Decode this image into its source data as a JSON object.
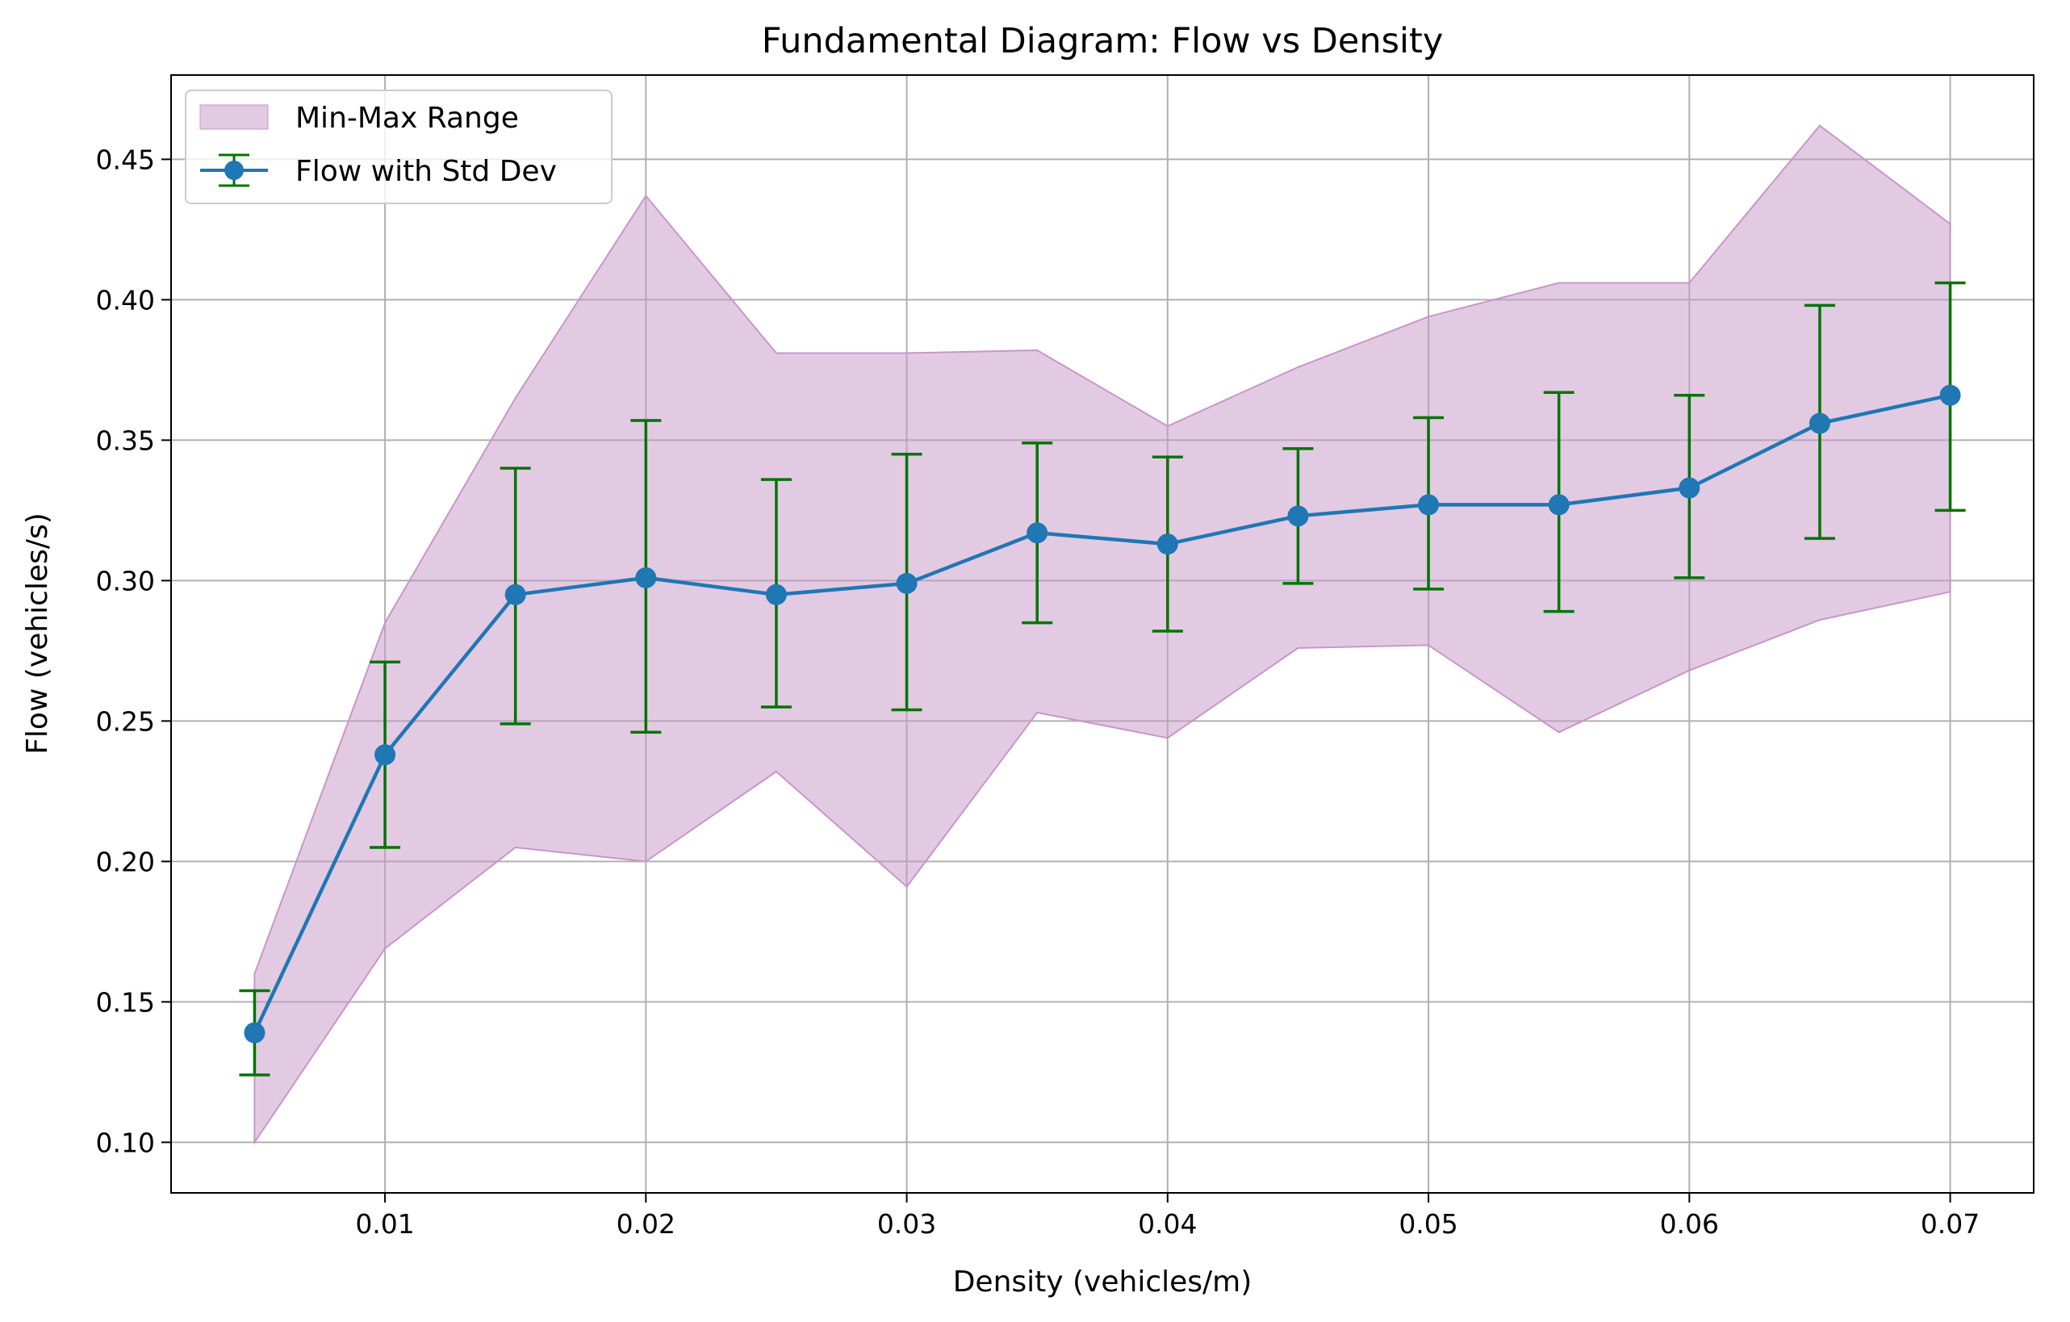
{
  "chart_data": {
    "type": "line",
    "title": "Fundamental Diagram: Flow vs Density",
    "xlabel": "Density (vehicles/m)",
    "ylabel": "Flow (vehicles/s)",
    "xlim": [
      0.0018,
      0.0732
    ],
    "ylim": [
      0.082,
      0.48
    ],
    "x_ticks": [
      0.01,
      0.02,
      0.03,
      0.04,
      0.05,
      0.06,
      0.07
    ],
    "x_tick_labels": [
      "0.01",
      "0.02",
      "0.03",
      "0.04",
      "0.05",
      "0.06",
      "0.07"
    ],
    "y_ticks": [
      0.1,
      0.15,
      0.2,
      0.25,
      0.3,
      0.35,
      0.4,
      0.45
    ],
    "y_tick_labels": [
      "0.10",
      "0.15",
      "0.20",
      "0.25",
      "0.30",
      "0.35",
      "0.40",
      "0.45"
    ],
    "grid": true,
    "legend_position": "top-left",
    "x": [
      0.005,
      0.01,
      0.015,
      0.02,
      0.025,
      0.03,
      0.035,
      0.04,
      0.045,
      0.05,
      0.055,
      0.06,
      0.065,
      0.07
    ],
    "series": [
      {
        "name": "Flow with Std Dev",
        "kind": "errorbar-line",
        "color": "#1f77b4",
        "errorbar_color": "#007400",
        "values": [
          0.139,
          0.238,
          0.295,
          0.301,
          0.295,
          0.299,
          0.317,
          0.313,
          0.323,
          0.327,
          0.327,
          0.333,
          0.356,
          0.366
        ],
        "error_lower": [
          0.124,
          0.205,
          0.249,
          0.246,
          0.255,
          0.254,
          0.285,
          0.282,
          0.299,
          0.297,
          0.289,
          0.301,
          0.315,
          0.325
        ],
        "error_upper": [
          0.154,
          0.271,
          0.34,
          0.357,
          0.336,
          0.345,
          0.349,
          0.344,
          0.347,
          0.358,
          0.367,
          0.366,
          0.398,
          0.406
        ]
      },
      {
        "name": "Min-Max Range",
        "kind": "fill-between",
        "color": "#c896c8",
        "min": [
          0.1,
          0.169,
          0.205,
          0.2,
          0.232,
          0.191,
          0.253,
          0.244,
          0.276,
          0.277,
          0.246,
          0.268,
          0.286,
          0.296
        ],
        "max": [
          0.16,
          0.285,
          0.365,
          0.437,
          0.381,
          0.381,
          0.382,
          0.355,
          0.376,
          0.394,
          0.406,
          0.406,
          0.462,
          0.427
        ]
      }
    ]
  }
}
